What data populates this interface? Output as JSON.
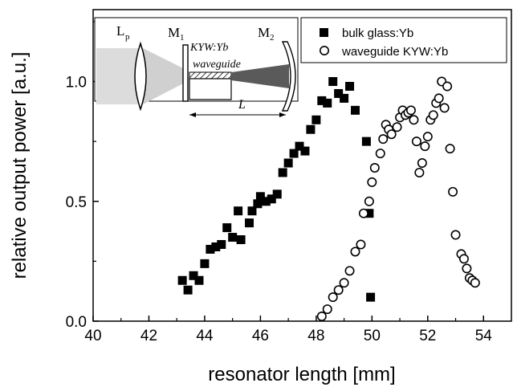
{
  "chart_data": {
    "type": "scatter",
    "xlabel": "resonator length [mm]",
    "ylabel": "relative output power [a.u.]",
    "xlim": [
      40,
      55
    ],
    "ylim": [
      0,
      1.3
    ],
    "x_ticks": [
      "40",
      "42",
      "44",
      "46",
      "48",
      "50",
      "52",
      "54"
    ],
    "y_ticks": [
      "0.0",
      "0.5",
      "1.0"
    ],
    "legend_position": "top-right",
    "series": [
      {
        "name": "bulk glass:Yb",
        "marker": "filled-square",
        "points": [
          [
            43.2,
            0.17
          ],
          [
            43.4,
            0.13
          ],
          [
            43.6,
            0.19
          ],
          [
            43.8,
            0.17
          ],
          [
            44.0,
            0.24
          ],
          [
            44.2,
            0.3
          ],
          [
            44.4,
            0.31
          ],
          [
            44.6,
            0.32
          ],
          [
            44.8,
            0.39
          ],
          [
            45.0,
            0.35
          ],
          [
            45.2,
            0.46
          ],
          [
            45.3,
            0.34
          ],
          [
            45.6,
            0.41
          ],
          [
            45.7,
            0.46
          ],
          [
            45.9,
            0.49
          ],
          [
            46.0,
            0.52
          ],
          [
            46.2,
            0.5
          ],
          [
            46.4,
            0.51
          ],
          [
            46.6,
            0.53
          ],
          [
            46.8,
            0.62
          ],
          [
            47.0,
            0.66
          ],
          [
            47.2,
            0.7
          ],
          [
            47.4,
            0.73
          ],
          [
            47.6,
            0.71
          ],
          [
            47.8,
            0.8
          ],
          [
            48.0,
            0.84
          ],
          [
            48.2,
            0.92
          ],
          [
            48.4,
            0.91
          ],
          [
            48.6,
            1.0
          ],
          [
            48.8,
            0.95
          ],
          [
            49.0,
            0.93
          ],
          [
            49.2,
            0.98
          ],
          [
            49.4,
            0.88
          ],
          [
            49.8,
            0.75
          ],
          [
            49.9,
            0.45
          ],
          [
            49.95,
            0.1
          ]
        ]
      },
      {
        "name": "waveguide KYW:Yb",
        "marker": "open-circle",
        "points": [
          [
            48.2,
            0.02
          ],
          [
            48.4,
            0.05
          ],
          [
            48.6,
            0.1
          ],
          [
            48.8,
            0.13
          ],
          [
            49.0,
            0.16
          ],
          [
            49.2,
            0.21
          ],
          [
            49.4,
            0.29
          ],
          [
            49.6,
            0.32
          ],
          [
            49.7,
            0.45
          ],
          [
            49.9,
            0.5
          ],
          [
            50.0,
            0.58
          ],
          [
            50.1,
            0.64
          ],
          [
            50.3,
            0.7
          ],
          [
            50.4,
            0.76
          ],
          [
            50.5,
            0.82
          ],
          [
            50.6,
            0.8
          ],
          [
            50.7,
            0.78
          ],
          [
            50.9,
            0.81
          ],
          [
            51.0,
            0.85
          ],
          [
            51.1,
            0.88
          ],
          [
            51.2,
            0.86
          ],
          [
            51.3,
            0.87
          ],
          [
            51.4,
            0.88
          ],
          [
            51.5,
            0.84
          ],
          [
            51.6,
            0.75
          ],
          [
            51.7,
            0.62
          ],
          [
            51.8,
            0.66
          ],
          [
            51.9,
            0.73
          ],
          [
            52.0,
            0.77
          ],
          [
            52.1,
            0.84
          ],
          [
            52.2,
            0.86
          ],
          [
            52.3,
            0.91
          ],
          [
            52.4,
            0.93
          ],
          [
            52.5,
            1.0
          ],
          [
            52.6,
            0.89
          ],
          [
            52.7,
            0.98
          ],
          [
            52.8,
            0.72
          ],
          [
            52.9,
            0.54
          ],
          [
            53.0,
            0.36
          ],
          [
            53.2,
            0.28
          ],
          [
            53.3,
            0.26
          ],
          [
            53.4,
            0.22
          ],
          [
            53.5,
            0.18
          ],
          [
            53.6,
            0.17
          ],
          [
            53.7,
            0.16
          ]
        ]
      }
    ],
    "inset": {
      "labels": {
        "lens": "L",
        "lens_sub": "p",
        "mirror1": "M",
        "mirror1_sub": "1",
        "crystal": "KYW:Yb",
        "waveguide": "waveguide",
        "mirror2": "M",
        "mirror2_sub": "2",
        "length": "L"
      }
    }
  }
}
